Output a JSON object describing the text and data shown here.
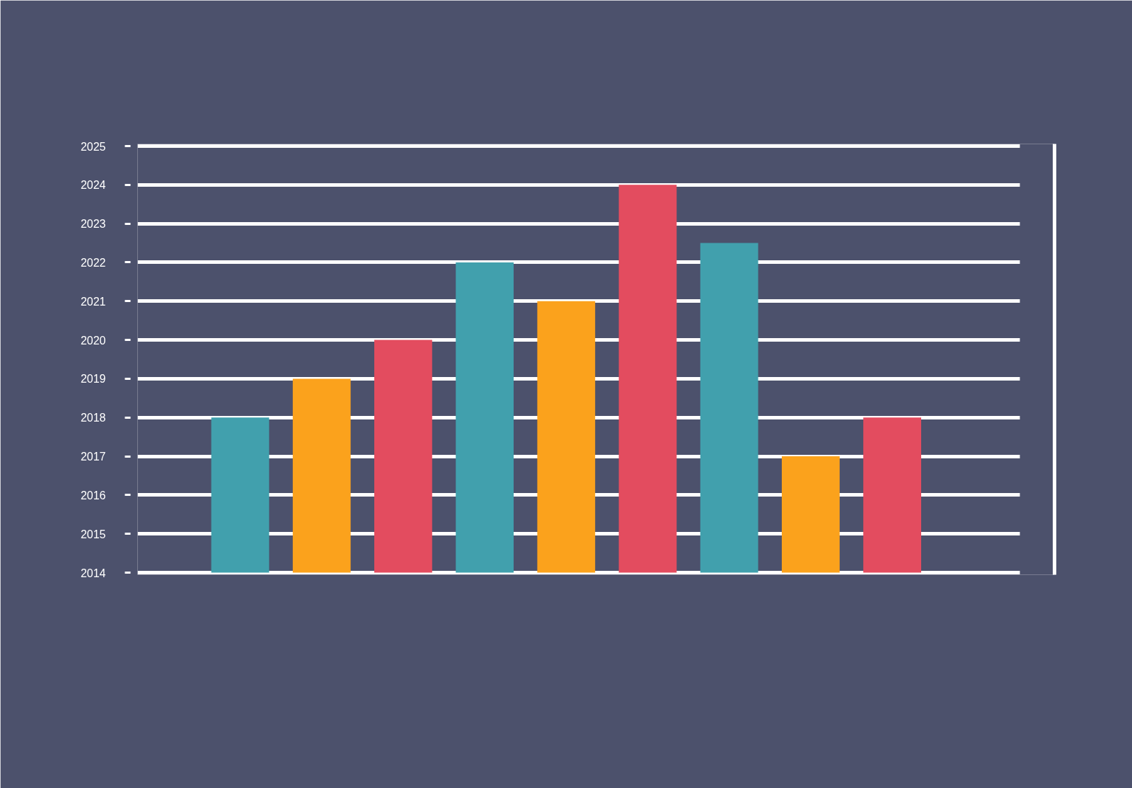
{
  "chart_data": {
    "type": "bar",
    "categories": [
      null,
      null,
      null,
      null,
      null,
      null,
      null,
      null,
      null
    ],
    "values": [
      2018,
      2019,
      2020,
      2022,
      2021,
      2024,
      2022.5,
      2017,
      2018
    ],
    "colors": [
      "#41a0ad",
      "#fba21c",
      "#e34c5f",
      "#41a0ad",
      "#fba21c",
      "#e34c5f",
      "#41a0ad",
      "#fba21c",
      "#e34c5f"
    ],
    "ylim": [
      2014,
      2025
    ],
    "yticks": [
      2014,
      2015,
      2016,
      2017,
      2018,
      2019,
      2020,
      2021,
      2022,
      2023,
      2024,
      2025
    ],
    "grid": "y",
    "tick_labels": "y"
  }
}
